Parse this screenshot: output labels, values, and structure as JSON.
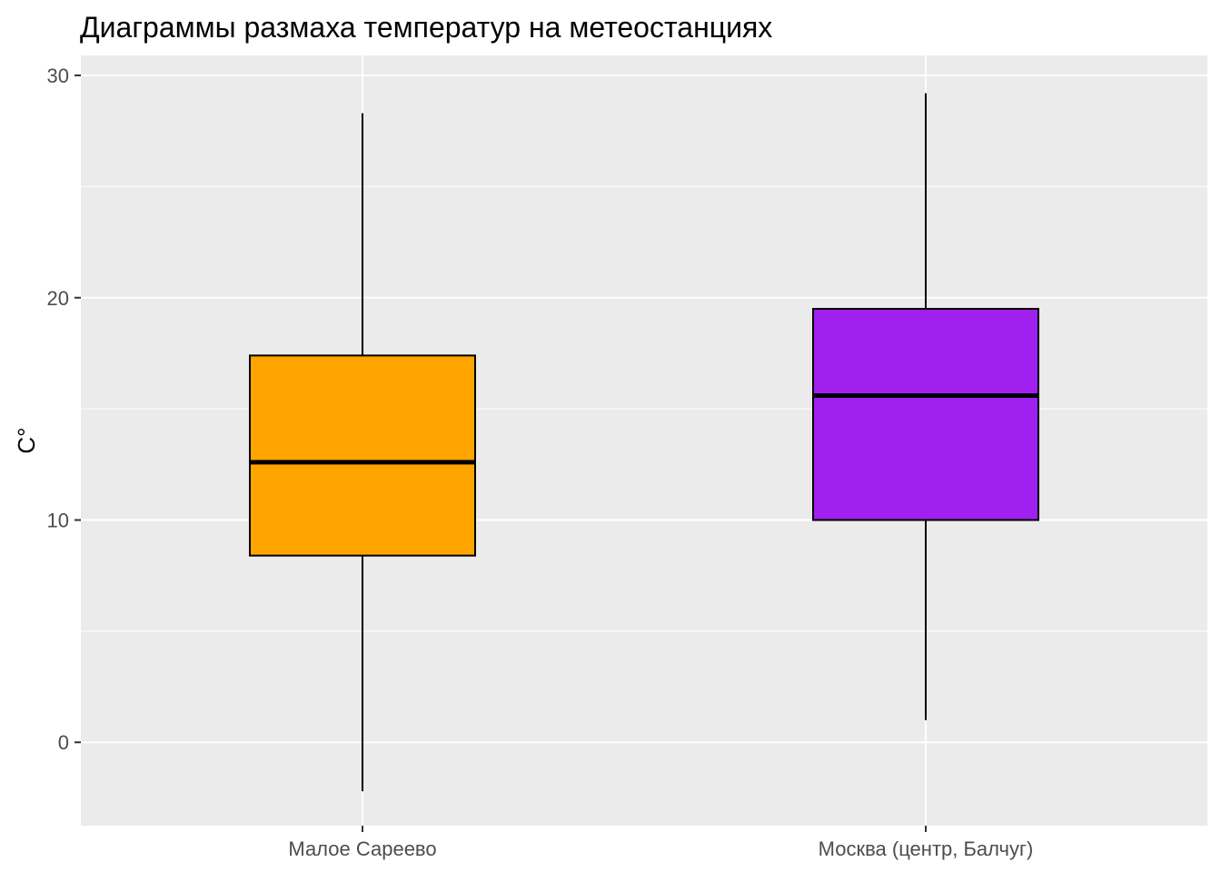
{
  "chart_data": {
    "type": "boxplot",
    "title": "Диаграммы размаха температур на метеостанциях",
    "xlabel": "",
    "ylabel": "C°",
    "ylim": [
      -3.75,
      30.9
    ],
    "yticks": [
      0,
      10,
      20,
      30
    ],
    "grid": true,
    "legend": "none",
    "background_color": "#ebebeb",
    "grid_color": "#ffffff",
    "categories": [
      "Малое Сареево",
      "Москва (центр, Балчуг)"
    ],
    "series": [
      {
        "category": "Малое Сареево",
        "min": -2.2,
        "q1": 8.4,
        "median": 12.6,
        "q3": 17.4,
        "max": 28.3,
        "fill": "#ffa500"
      },
      {
        "category": "Москва (центр, Балчуг)",
        "min": 1.0,
        "q1": 10.0,
        "median": 15.6,
        "q3": 19.5,
        "max": 29.2,
        "fill": "#a020f0"
      }
    ]
  }
}
